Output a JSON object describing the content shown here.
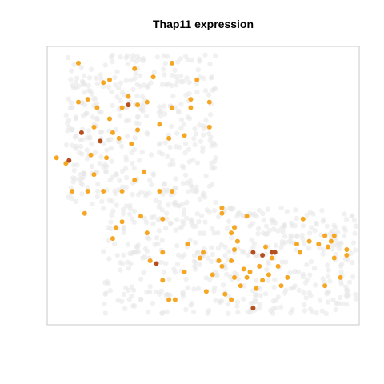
{
  "chart_data": {
    "type": "scatter",
    "title": "Thap11 expression",
    "xlabel": "",
    "ylabel": "",
    "xlim": [
      0,
      100
    ],
    "ylim": [
      0,
      100
    ],
    "axes_visible": false,
    "grid": false,
    "legend": "none",
    "colors": {
      "background_cells": "#e6e6e6",
      "low_expression": "#f5a623",
      "high_expression": "#b5501e",
      "frame": "#c8c8c8"
    },
    "series": [
      {
        "level": "high",
        "points": [
          [
            26,
            79
          ],
          [
            11,
            69
          ],
          [
            17,
            66
          ],
          [
            7,
            59
          ],
          [
            35,
            22
          ],
          [
            69,
            25
          ],
          [
            72,
            26
          ],
          [
            66,
            26
          ],
          [
            73,
            26
          ],
          [
            66,
            6
          ]
        ]
      },
      {
        "level": "low",
        "points": [
          [
            10,
            94
          ],
          [
            40,
            94
          ],
          [
            28,
            92
          ],
          [
            34,
            89
          ],
          [
            18,
            87
          ],
          [
            13,
            81
          ],
          [
            26,
            82
          ],
          [
            24,
            78
          ],
          [
            29,
            79
          ],
          [
            32,
            80
          ],
          [
            40,
            78
          ],
          [
            52,
            71
          ],
          [
            36,
            72
          ],
          [
            20,
            74
          ],
          [
            15,
            71
          ],
          [
            21,
            69
          ],
          [
            23,
            67
          ],
          [
            27,
            65
          ],
          [
            14,
            61
          ],
          [
            3,
            60
          ],
          [
            6,
            58
          ],
          [
            15,
            54
          ],
          [
            19,
            60
          ],
          [
            28,
            52
          ],
          [
            24,
            48
          ],
          [
            31,
            55
          ],
          [
            36,
            48
          ],
          [
            40,
            48
          ],
          [
            8,
            48
          ],
          [
            13,
            48
          ],
          [
            18,
            48
          ],
          [
            12,
            40
          ],
          [
            30,
            39
          ],
          [
            22,
            35
          ],
          [
            21,
            31
          ],
          [
            24,
            37
          ],
          [
            37,
            38
          ],
          [
            32,
            33
          ],
          [
            37,
            26
          ],
          [
            33,
            23
          ],
          [
            45,
            29
          ],
          [
            50,
            26
          ],
          [
            49,
            24
          ],
          [
            37,
            16
          ],
          [
            44,
            19
          ],
          [
            41,
            9
          ],
          [
            53,
            18
          ],
          [
            55,
            23
          ],
          [
            56,
            21
          ],
          [
            59,
            23
          ],
          [
            60,
            27
          ],
          [
            61,
            30
          ],
          [
            60,
            17
          ],
          [
            63,
            20
          ],
          [
            62,
            14
          ],
          [
            64,
            17
          ],
          [
            65,
            19
          ],
          [
            67,
            13
          ],
          [
            69,
            16
          ],
          [
            71,
            18
          ],
          [
            72,
            24
          ],
          [
            74,
            21
          ],
          [
            75,
            14
          ],
          [
            77,
            17
          ],
          [
            68,
            21
          ],
          [
            70,
            28
          ],
          [
            56,
            40
          ],
          [
            56,
            42
          ],
          [
            59,
            33
          ],
          [
            64,
            39
          ],
          [
            60,
            35
          ],
          [
            82,
            38
          ],
          [
            80,
            29
          ],
          [
            81,
            26
          ],
          [
            84,
            30
          ],
          [
            87,
            29
          ],
          [
            89,
            32
          ],
          [
            91,
            30
          ],
          [
            92,
            32
          ],
          [
            90,
            28
          ],
          [
            96,
            27
          ],
          [
            96,
            25
          ],
          [
            92,
            24
          ],
          [
            94,
            17
          ],
          [
            89,
            14
          ],
          [
            59,
            9
          ],
          [
            57,
            11
          ],
          [
            51,
            12
          ],
          [
            39,
            9
          ],
          [
            20,
            88
          ],
          [
            39,
            67
          ],
          [
            44,
            68
          ],
          [
            48,
            88
          ],
          [
            46,
            78
          ],
          [
            52,
            80
          ],
          [
            16,
            78
          ],
          [
            10,
            80
          ],
          [
            29,
            70
          ],
          [
            46,
            81
          ]
        ]
      }
    ]
  }
}
